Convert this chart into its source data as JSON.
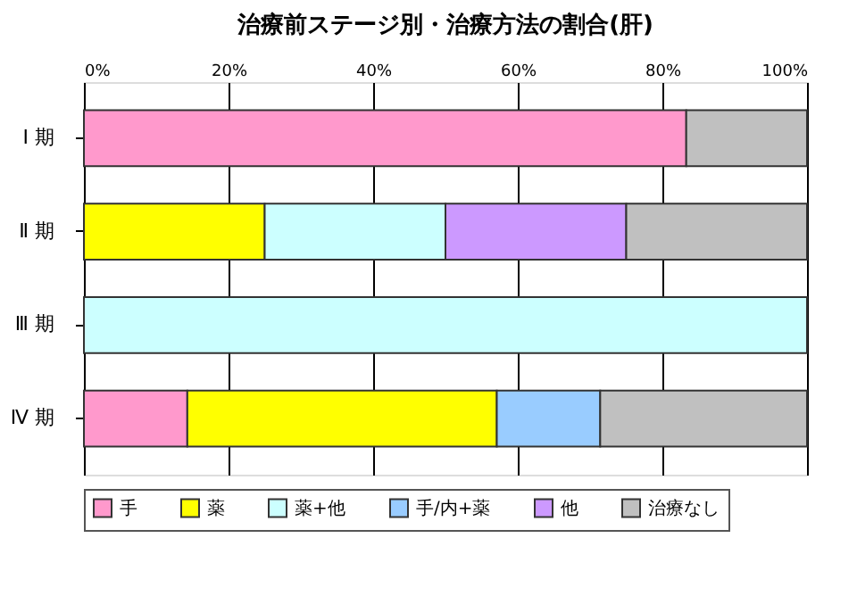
{
  "chart_data": {
    "type": "bar",
    "title": "治療前ステージ別・治療方法の割合(肝)",
    "orientation": "horizontal",
    "stacked": true,
    "categories": [
      "Ⅰ 期",
      "Ⅱ 期",
      "Ⅲ 期",
      "Ⅳ 期"
    ],
    "series": [
      {
        "name": "手",
        "color": "#ff99cc",
        "values": [
          83.3,
          null,
          null,
          14.3
        ]
      },
      {
        "name": "薬",
        "color": "#ffff00",
        "values": [
          null,
          25,
          null,
          42.8
        ]
      },
      {
        "name": "薬+他",
        "color": "#ccffff",
        "values": [
          null,
          25,
          100,
          null
        ]
      },
      {
        "name": "手/内+薬",
        "color": "#99ccff",
        "values": [
          null,
          null,
          null,
          14.3
        ]
      },
      {
        "name": "他",
        "color": "#cc99ff",
        "values": [
          null,
          25,
          null,
          null
        ]
      },
      {
        "name": "治療なし",
        "color": "#c0c0c0",
        "values": [
          16.7,
          25,
          null,
          28.6
        ]
      }
    ],
    "xlim": [
      0,
      100
    ],
    "xticks": [
      {
        "value": 0,
        "label": "0%"
      },
      {
        "value": 20,
        "label": "20%"
      },
      {
        "value": 40,
        "label": "40%"
      },
      {
        "value": 60,
        "label": "60%"
      },
      {
        "value": 80,
        "label": "80%"
      },
      {
        "value": 100,
        "label": "100%"
      }
    ],
    "grid": "x",
    "legend": "bottom"
  }
}
